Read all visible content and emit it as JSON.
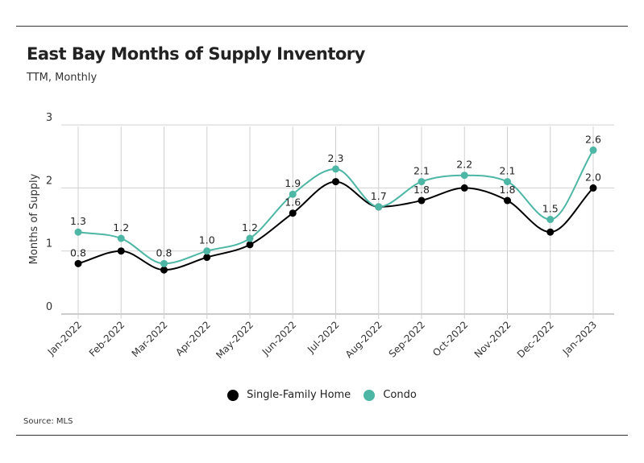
{
  "chart_data": {
    "type": "line",
    "title": "East Bay Months of Supply Inventory",
    "subtitle": "TTM, Monthly",
    "xlabel": "",
    "ylabel": "Months of Supply",
    "ylim": [
      0,
      3
    ],
    "yticks": [
      "0",
      "1",
      "2",
      "3"
    ],
    "categories": [
      "Jan-2022",
      "Feb-2022",
      "Mar-2022",
      "Apr-2022",
      "May-2022",
      "Jun-2022",
      "Jul-2022",
      "Aug-2022",
      "Sep-2022",
      "Oct-2022",
      "Nov-2022",
      "Dec-2022",
      "Jan-2023"
    ],
    "series": [
      {
        "name": "Single-Family Home",
        "color": "#000000",
        "values": [
          0.8,
          1.0,
          0.7,
          0.9,
          1.1,
          1.6,
          2.1,
          1.7,
          1.8,
          2.0,
          1.8,
          1.3,
          2.0
        ],
        "labels": [
          "0.8",
          "",
          "",
          "",
          "",
          "1.6",
          "",
          "",
          "1.8",
          "",
          "1.8",
          "",
          "2.0"
        ]
      },
      {
        "name": "Condo",
        "color": "#4db6a4",
        "values": [
          1.3,
          1.2,
          0.8,
          1.0,
          1.2,
          1.9,
          2.3,
          1.7,
          2.1,
          2.2,
          2.1,
          1.5,
          2.6
        ],
        "labels": [
          "1.3",
          "1.2",
          "0.8",
          "1.0",
          "1.2",
          "1.9",
          "2.3",
          "1.7",
          "2.1",
          "2.2",
          "2.1",
          "1.5",
          "2.6"
        ]
      }
    ],
    "grid": true,
    "legend": "bottom",
    "source": "Source:  MLS"
  }
}
